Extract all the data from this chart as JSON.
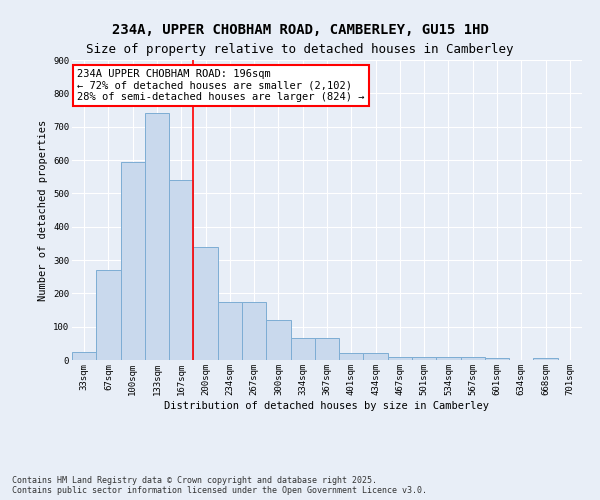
{
  "title_line1": "234A, UPPER CHOBHAM ROAD, CAMBERLEY, GU15 1HD",
  "title_line2": "Size of property relative to detached houses in Camberley",
  "xlabel": "Distribution of detached houses by size in Camberley",
  "ylabel": "Number of detached properties",
  "categories": [
    "33sqm",
    "67sqm",
    "100sqm",
    "133sqm",
    "167sqm",
    "200sqm",
    "234sqm",
    "267sqm",
    "300sqm",
    "334sqm",
    "367sqm",
    "401sqm",
    "434sqm",
    "467sqm",
    "501sqm",
    "534sqm",
    "567sqm",
    "601sqm",
    "634sqm",
    "668sqm",
    "701sqm"
  ],
  "values": [
    25,
    270,
    595,
    740,
    540,
    340,
    175,
    175,
    120,
    65,
    65,
    20,
    20,
    10,
    10,
    10,
    10,
    5,
    0,
    5,
    0
  ],
  "bar_color": "#c9d9ed",
  "bar_edge_color": "#7dadd4",
  "vline_color": "red",
  "annotation_text": "234A UPPER CHOBHAM ROAD: 196sqm\n← 72% of detached houses are smaller (2,102)\n28% of semi-detached houses are larger (824) →",
  "annotation_box_color": "white",
  "annotation_box_edge_color": "red",
  "ylim": [
    0,
    900
  ],
  "yticks": [
    0,
    100,
    200,
    300,
    400,
    500,
    600,
    700,
    800,
    900
  ],
  "background_color": "#e8eef7",
  "grid_color": "white",
  "footnote": "Contains HM Land Registry data © Crown copyright and database right 2025.\nContains public sector information licensed under the Open Government Licence v3.0.",
  "title_fontsize": 10,
  "subtitle_fontsize": 9,
  "label_fontsize": 7.5,
  "tick_fontsize": 6.5,
  "annot_fontsize": 7.5
}
